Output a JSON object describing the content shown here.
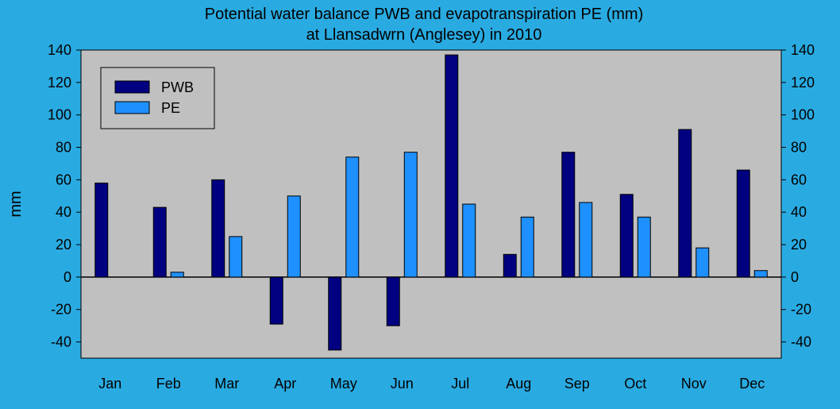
{
  "chart_data": {
    "type": "bar",
    "title": "Potential water balance PWB and evapotranspiration PE (mm)",
    "subtitle": "at Llansadwrn (Anglesey) in 2010",
    "ylabel": "mm",
    "xlabel": "",
    "ylim": [
      -50,
      140
    ],
    "yticks": [
      -40,
      -20,
      0,
      20,
      40,
      60,
      80,
      100,
      120,
      140
    ],
    "categories": [
      "Jan",
      "Feb",
      "Mar",
      "Apr",
      "May",
      "Jun",
      "Jul",
      "Aug",
      "Sep",
      "Oct",
      "Nov",
      "Dec"
    ],
    "series": [
      {
        "name": "PWB",
        "color": "#000080",
        "values": [
          58,
          43,
          60,
          -29,
          -45,
          -30,
          137,
          14,
          77,
          51,
          91,
          66
        ]
      },
      {
        "name": "PE",
        "color": "#1E90FF",
        "values": [
          0,
          3,
          25,
          50,
          74,
          77,
          45,
          37,
          46,
          37,
          18,
          4
        ]
      }
    ],
    "legend_position": "top-left",
    "grid": false,
    "plot_background": "#C0C0C0"
  }
}
